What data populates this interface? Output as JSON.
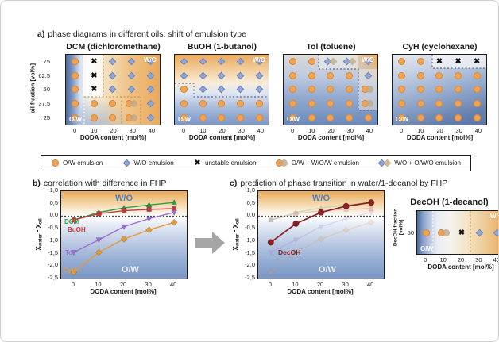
{
  "section_a": {
    "label": "a)",
    "title": "phase diagrams in different oils: shift of emulsion type",
    "y_axis_label": "oil fraction [vol%]",
    "x_axis_label": "DODA content [mol%]",
    "y_ticks": [
      "75",
      "62.5",
      "50",
      "37.5",
      "25"
    ],
    "x_ticks": [
      "0",
      "10",
      "20",
      "30",
      "40"
    ],
    "panels": [
      {
        "title": "DCM (dichloromethane)",
        "wo_label": "W/O",
        "ow_label": "O/W",
        "grid": [
          [
            "ow",
            "x",
            "wo",
            "wo",
            "wo"
          ],
          [
            "ow",
            "x",
            "wo",
            "wo",
            "wo"
          ],
          [
            "ow",
            "x",
            "wo",
            "wo",
            "wo"
          ],
          [
            "ow",
            "ow",
            "ow",
            "ow_wow",
            "wo"
          ],
          [
            "ow",
            "ow",
            "ow",
            "ow_wow",
            "wo"
          ]
        ]
      },
      {
        "title": "BuOH (1-butanol)",
        "wo_label": "W/O",
        "ow_label": "O/W",
        "grid": [
          [
            "wo",
            "wo",
            "wo",
            "wo",
            "wo"
          ],
          [
            "wo",
            "wo",
            "wo",
            "wo",
            "wo"
          ],
          [
            "ow",
            "wo",
            "wo",
            "wo",
            "wo"
          ],
          [
            "ow",
            "ow",
            "ow",
            "ow",
            "ow"
          ],
          [
            "ow",
            "ow",
            "ow",
            "ow",
            "ow"
          ]
        ]
      },
      {
        "title": "Tol (toluene)",
        "wo_label": "W/O",
        "ow_label": "O/W",
        "grid": [
          [
            "ow",
            "ow",
            "wo_owo",
            "wo_owo",
            "wo"
          ],
          [
            "ow",
            "ow",
            "ow",
            "ow",
            "wo"
          ],
          [
            "ow",
            "ow",
            "ow",
            "ow",
            "ow_wow"
          ],
          [
            "ow",
            "ow",
            "ow",
            "ow",
            "ow_wow"
          ],
          [
            "ow",
            "ow",
            "ow",
            "ow",
            "ow"
          ]
        ]
      },
      {
        "title": "CyH (cyclohexane)",
        "wo_label": "",
        "ow_label": "O/W",
        "grid": [
          [
            "ow",
            "ow",
            "x",
            "x",
            "x"
          ],
          [
            "ow",
            "ow",
            "ow",
            "ow",
            "ow"
          ],
          [
            "ow",
            "ow",
            "ow",
            "ow",
            "ow"
          ],
          [
            "ow",
            "ow",
            "ow",
            "ow",
            "ow"
          ],
          [
            "ow",
            "ow",
            "ow",
            "ow",
            "ow"
          ]
        ]
      }
    ]
  },
  "legend": {
    "items": [
      {
        "icon": "ow-emulsion-icon",
        "label": "O/W emulsion"
      },
      {
        "icon": "wo-emulsion-icon",
        "label": "W/O emulsion"
      },
      {
        "icon": "unstable-emulsion-icon",
        "label": "unstable emulsion"
      },
      {
        "icon": "ow-wow-emulsion-icon",
        "label": "O/W + W/O/W emulsion"
      },
      {
        "icon": "wo-owo-emulsion-icon",
        "label": "W/O + O/W/O emulsion"
      }
    ]
  },
  "section_b": {
    "label": "b)",
    "title": "correlation with difference in FHP"
  },
  "section_c": {
    "label": "c)",
    "title": "prediction of phase transition in water/1-decanol by FHP",
    "mini_panel": {
      "title": "DecOH (1-decanol)",
      "y_axis_label_line1": "DecOH fraction",
      "y_axis_label_line2": "[vol%]",
      "y_ticks": [
        "50"
      ],
      "x_ticks": [
        "0",
        "10",
        "20",
        "30",
        "40"
      ],
      "x_axis_label": "DODA content [mol%]",
      "wo_label": "W/O",
      "ow_label": "O/W",
      "grid": [
        [
          "ow",
          "ow_wow",
          "x",
          "wo",
          "wo"
        ]
      ]
    }
  },
  "axis_label": {
    "chi": "χ",
    "water": "water",
    "minus": " - ",
    "oil": "oil"
  },
  "colors": {
    "ow_orange": "#F0A452",
    "wo_blue": "#92A6D5",
    "unstable_black": "#111111",
    "wo_text_blue": "#4C7EC4",
    "arrow_gray": "#A6A6A6"
  },
  "chart_data": [
    {
      "id": "panel-b",
      "type": "line",
      "title": "correlation with difference in FHP",
      "xlabel": "DODA content [mol%]",
      "ylabel": "χwater - χoil",
      "x": [
        0,
        10,
        20,
        30,
        40
      ],
      "x_ticks": [
        "0",
        "10",
        "20",
        "30",
        "40"
      ],
      "y_ticks": [
        "1,0",
        "0,5",
        "0,0",
        "-0,5",
        "-1,0",
        "-1,5",
        "-2,0",
        "-2,5"
      ],
      "xlim": [
        -5,
        45
      ],
      "ylim": [
        -2.5,
        1.0
      ],
      "zero_line": true,
      "grid": false,
      "legend_position": "inline-labels",
      "region_labels": {
        "wo": "W/O",
        "ow": "O/W"
      },
      "series": [
        {
          "name": "DCM",
          "color": "#2F9E41",
          "marker": "triangle-up",
          "values": [
            -0.15,
            0.15,
            0.33,
            0.45,
            0.55
          ]
        },
        {
          "name": "BuOH",
          "color": "#C23B3E",
          "marker": "square",
          "values": [
            -0.15,
            0.1,
            0.22,
            0.27,
            0.3
          ]
        },
        {
          "name": "Tol",
          "color": "#9C6FD6",
          "marker": "triangle-down",
          "values": [
            -1.45,
            -0.95,
            -0.42,
            -0.1,
            0.15
          ]
        },
        {
          "name": "CyH",
          "color": "#E79A33",
          "marker": "diamond",
          "values": [
            -2.25,
            -1.45,
            -0.92,
            -0.55,
            -0.25
          ]
        }
      ]
    },
    {
      "id": "panel-c",
      "type": "line",
      "title": "prediction of phase transition in water/1-decanol by FHP",
      "xlabel": "DODA content [mol%]",
      "ylabel": "χwater - χoil",
      "x": [
        0,
        10,
        20,
        30,
        40
      ],
      "x_ticks": [
        "0",
        "10",
        "20",
        "30",
        "40"
      ],
      "y_ticks": [
        "1,0",
        "0,5",
        "0,0",
        "-0,5",
        "-1,0",
        "-1,5",
        "-2,0",
        "-2,5"
      ],
      "xlim": [
        -5,
        45
      ],
      "ylim": [
        -2.5,
        1.0
      ],
      "zero_line": true,
      "grid": false,
      "legend_position": "inline-labels",
      "region_labels": {
        "wo": "W/O",
        "ow": "O/W"
      },
      "series": [
        {
          "name": "DCM",
          "color": "#2F9E41",
          "marker": "triangle-up",
          "faded": true,
          "values": [
            -0.15,
            0.15,
            0.33,
            0.45,
            0.55
          ]
        },
        {
          "name": "BuOH",
          "color": "#C23B3E",
          "marker": "square",
          "faded": true,
          "values": [
            -0.15,
            0.1,
            0.22,
            0.27,
            0.3
          ]
        },
        {
          "name": "Tol",
          "color": "#9C6FD6",
          "marker": "triangle-down",
          "faded": true,
          "values": [
            -1.45,
            -0.95,
            -0.42,
            -0.1,
            0.15
          ]
        },
        {
          "name": "CyH",
          "color": "#E79A33",
          "marker": "diamond",
          "faded": true,
          "values": [
            -2.25,
            -1.45,
            -0.92,
            -0.55,
            -0.25
          ]
        },
        {
          "name": "DecOH",
          "color": "#8C2022",
          "marker": "circle",
          "values": [
            -1.05,
            -0.3,
            0.15,
            0.4,
            0.55
          ]
        }
      ]
    }
  ]
}
